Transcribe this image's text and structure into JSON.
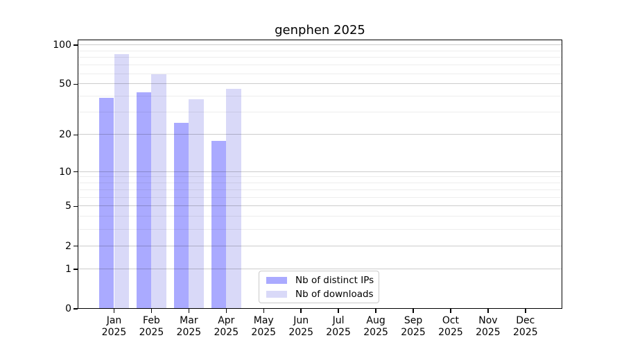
{
  "title": "genphen 2025",
  "colors": {
    "background": "#ffffff",
    "distinct_ips": "#aaaaff",
    "downloads": "#d9d9f8",
    "axis": "#000000",
    "grid_major": "rgba(0,0,0,0.20)",
    "grid_minor": "rgba(0,0,0,0.07)",
    "legend_border": "#c9c9c9",
    "text": "#000000"
  },
  "legend": {
    "items": [
      {
        "label": "Nb of distinct IPs",
        "color": "#aaaaff"
      },
      {
        "label": "Nb of downloads",
        "color": "#d9d9f8"
      }
    ],
    "position": "bottom-center"
  },
  "chart_data": {
    "type": "bar",
    "title": "genphen 2025",
    "xlabel": "",
    "ylabel": "",
    "categories": [
      "Jan",
      "Feb",
      "Mar",
      "Apr",
      "May",
      "Jun",
      "Jul",
      "Aug",
      "Sep",
      "Oct",
      "Nov",
      "Dec"
    ],
    "category_year": "2025",
    "series": [
      {
        "name": "Nb of distinct IPs",
        "color": "#aaaaff",
        "values": [
          39,
          43,
          25,
          18,
          null,
          null,
          null,
          null,
          null,
          null,
          null,
          null
        ]
      },
      {
        "name": "Nb of downloads",
        "color": "#d9d9f8",
        "values": [
          85,
          60,
          38,
          46,
          null,
          null,
          null,
          null,
          null,
          null,
          null,
          null
        ]
      }
    ],
    "y_scale": "log10(1+y)",
    "y_ticks": [
      0,
      1,
      2,
      5,
      10,
      20,
      50,
      100
    ],
    "y_minor_gridlines": [
      3,
      4,
      6,
      7,
      8,
      9,
      30,
      40,
      60,
      70,
      80,
      90
    ],
    "ylim": [
      0,
      110
    ],
    "grid": "horizontal",
    "legend_entries": [
      "Nb of distinct IPs",
      "Nb of downloads"
    ]
  }
}
